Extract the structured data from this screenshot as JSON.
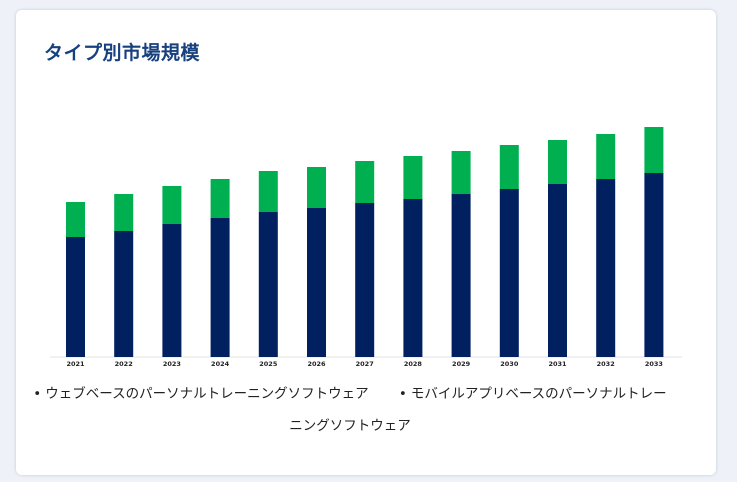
{
  "card": {
    "title": "タイプ別市場規模"
  },
  "colors": {
    "web": "#002060",
    "mobile": "#00b050",
    "tick_text": "#222222"
  },
  "chart_data": {
    "type": "bar",
    "stacked": true,
    "title": "",
    "xlabel": "",
    "ylabel": "",
    "grid": false,
    "legend_position": "bottom",
    "categories": [
      "2021",
      "2022",
      "2023",
      "2024",
      "2025",
      "2026",
      "2027",
      "2028",
      "2029",
      "2030",
      "2031",
      "2032",
      "2033"
    ],
    "series": [
      {
        "name": "ウェブベースのパーソナルトレーニングソフトウェア",
        "values": [
          12.0,
          12.6,
          13.3,
          13.9,
          14.5,
          14.9,
          15.4,
          15.8,
          16.3,
          16.8,
          17.3,
          17.8,
          18.4
        ]
      },
      {
        "name": "モバイルアプリベースのパーソナルトレーニングソフトウェア",
        "values": [
          3.5,
          3.7,
          3.8,
          3.9,
          4.1,
          4.1,
          4.2,
          4.3,
          4.3,
          4.4,
          4.4,
          4.5,
          4.6
        ]
      }
    ]
  },
  "legend": {
    "bullet": "•"
  }
}
